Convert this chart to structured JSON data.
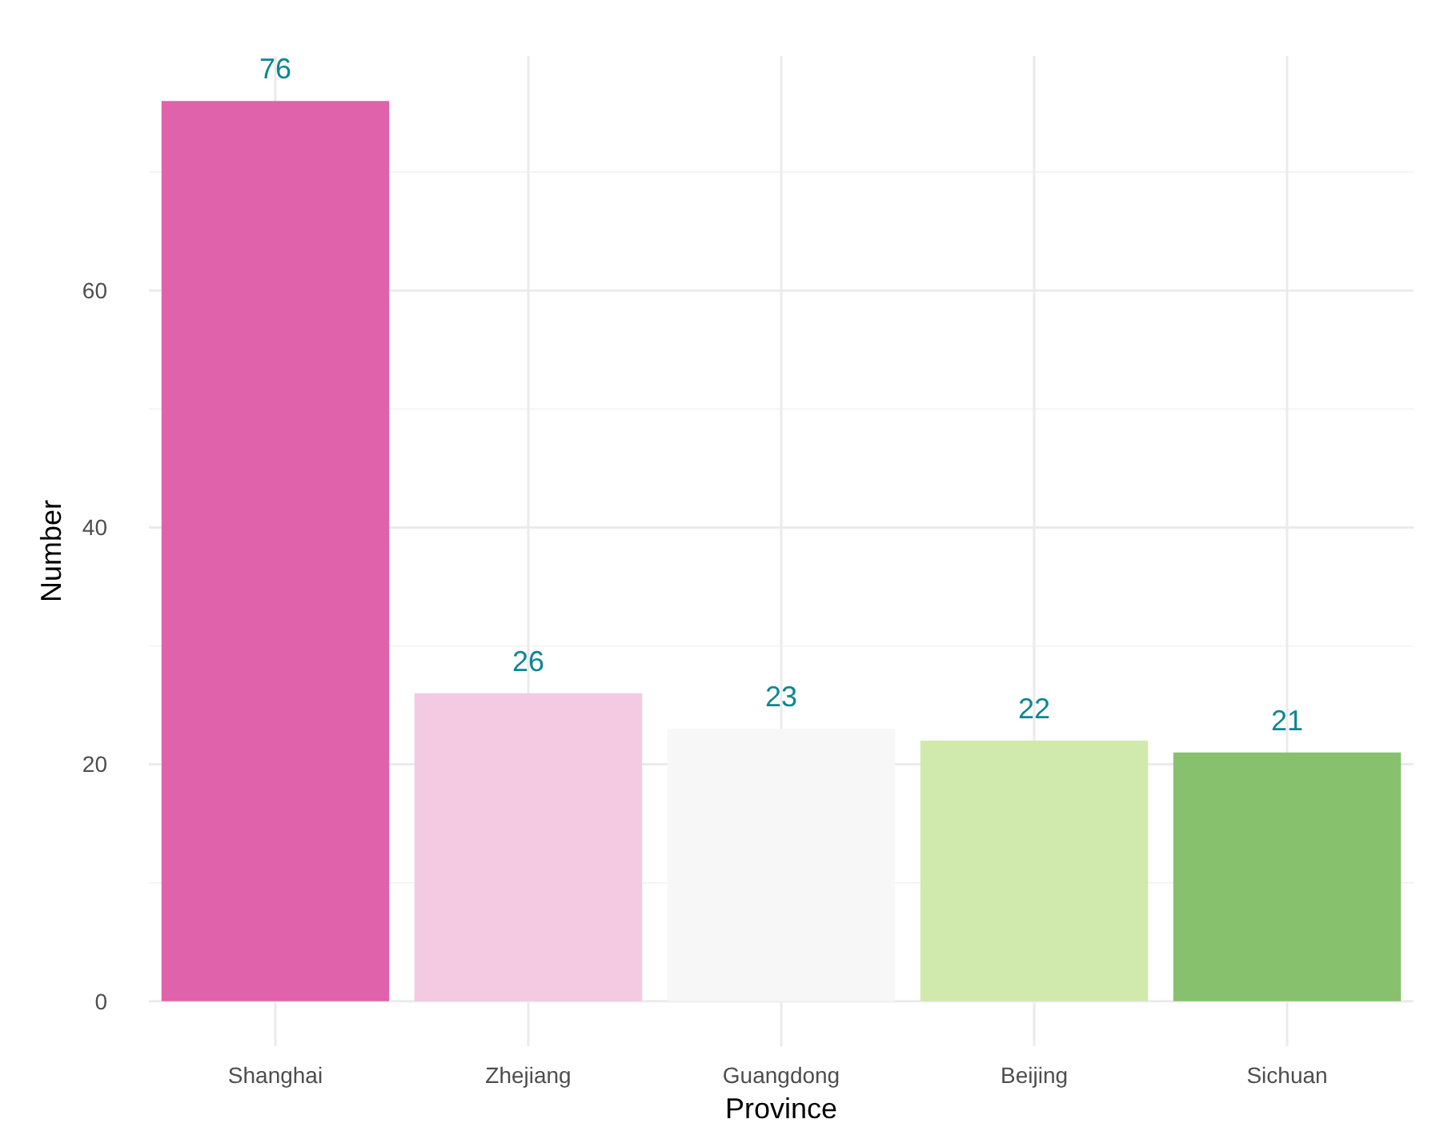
{
  "chart_data": {
    "type": "bar",
    "xlabel": "Province",
    "ylabel": "Number",
    "categories": [
      "Shanghai",
      "Zhejiang",
      "Guangdong",
      "Beijing",
      "Sichuan"
    ],
    "values": [
      76,
      26,
      23,
      22,
      21
    ],
    "colors": [
      "#df62ab",
      "#f4c9e2",
      "#f7f7f7",
      "#d0e9ac",
      "#88c16e"
    ],
    "ylim": [
      -3.8,
      79.8
    ],
    "yticks": [
      0,
      20,
      40,
      60
    ],
    "grid": true,
    "data_labels": true
  }
}
